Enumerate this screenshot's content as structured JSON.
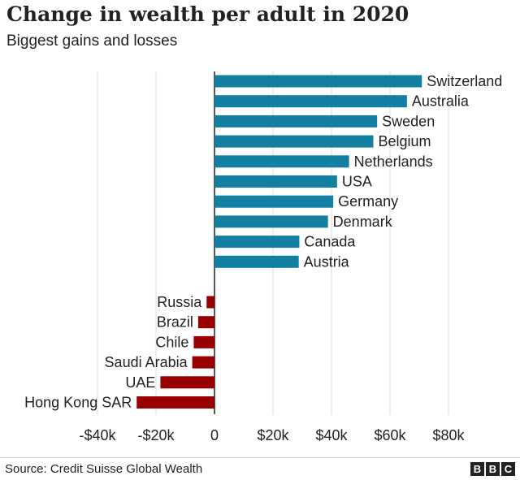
{
  "chart_data": {
    "type": "bar",
    "orientation": "horizontal",
    "title": "Change in wealth per adult in 2020",
    "subtitle": "Biggest gains and losses",
    "source": "Source: Credit Suisse Global Wealth",
    "xlim": [
      -40000,
      80000
    ],
    "x_ticks": [
      {
        "value": -40000,
        "label": "-$40k"
      },
      {
        "value": -20000,
        "label": "-$20k"
      },
      {
        "value": 0,
        "label": "0"
      },
      {
        "value": 20000,
        "label": "$20k"
      },
      {
        "value": 40000,
        "label": "$40k"
      },
      {
        "value": 60000,
        "label": "$60k"
      },
      {
        "value": 80000,
        "label": "$80k"
      }
    ],
    "grid": true,
    "gains": [
      {
        "label": "Switzerland",
        "value": 70900
      },
      {
        "label": "Australia",
        "value": 65800
      },
      {
        "label": "Sweden",
        "value": 55600
      },
      {
        "label": "Belgium",
        "value": 54300
      },
      {
        "label": "Netherlands",
        "value": 46000
      },
      {
        "label": "USA",
        "value": 41900
      },
      {
        "label": "Germany",
        "value": 40600
      },
      {
        "label": "Denmark",
        "value": 38800
      },
      {
        "label": "Canada",
        "value": 29000
      },
      {
        "label": "Austria",
        "value": 28800
      }
    ],
    "losses": [
      {
        "label": "Russia",
        "value": -2700
      },
      {
        "label": "Brazil",
        "value": -5600
      },
      {
        "label": "Chile",
        "value": -7100
      },
      {
        "label": "Saudi Arabia",
        "value": -7600
      },
      {
        "label": "UAE",
        "value": -18500
      },
      {
        "label": "Hong Kong SAR",
        "value": -26600
      }
    ],
    "colors": {
      "gain": "#1380a1",
      "loss": "#990000",
      "grid": "#dddddd",
      "axis": "#222222"
    }
  },
  "logo": {
    "letters": [
      "B",
      "B",
      "C"
    ]
  }
}
